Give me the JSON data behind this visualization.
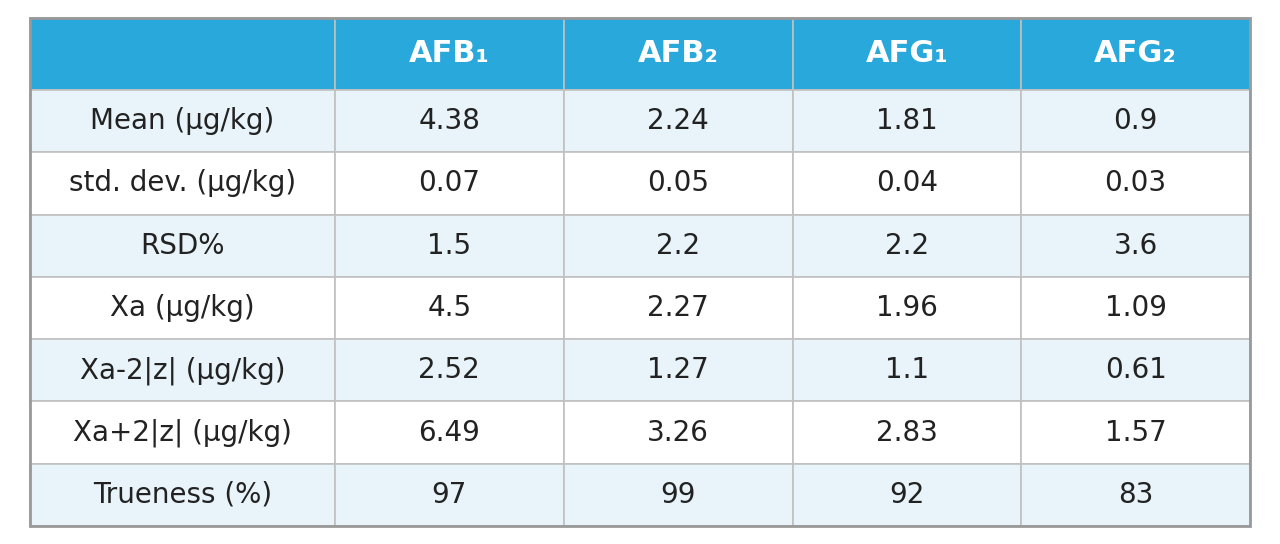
{
  "header_bg_color": "#29A8DC",
  "header_text_color": "#FFFFFF",
  "row_bg_colors": [
    "#E8F4FA",
    "#FFFFFF",
    "#E8F4FA",
    "#FFFFFF",
    "#E8F4FA",
    "#FFFFFF",
    "#E8F4FA"
  ],
  "border_color": "#C0C0C0",
  "text_color": "#222222",
  "col_labels": [
    "AFB₁",
    "AFB₂",
    "AFG₁",
    "AFG₂"
  ],
  "row_labels": [
    "Mean (μg/kg)",
    "std. dev. (μg/kg)",
    "RSD%",
    "Xa (μg/kg)",
    "Xa-2|z| (μg/kg)",
    "Xa+2|z| (μg/kg)",
    "Trueness (%)"
  ],
  "values": [
    [
      "4.38",
      "2.24",
      "1.81",
      "0.9"
    ],
    [
      "0.07",
      "0.05",
      "0.04",
      "0.03"
    ],
    [
      "1.5",
      "2.2",
      "2.2",
      "3.6"
    ],
    [
      "4.5",
      "2.27",
      "1.96",
      "1.09"
    ],
    [
      "2.52",
      "1.27",
      "1.1",
      "0.61"
    ],
    [
      "6.49",
      "3.26",
      "2.83",
      "1.57"
    ],
    [
      "97",
      "99",
      "92",
      "83"
    ]
  ],
  "header_fontsize": 22,
  "body_fontsize": 20,
  "fig_width": 12.8,
  "fig_height": 5.44,
  "dpi": 100
}
